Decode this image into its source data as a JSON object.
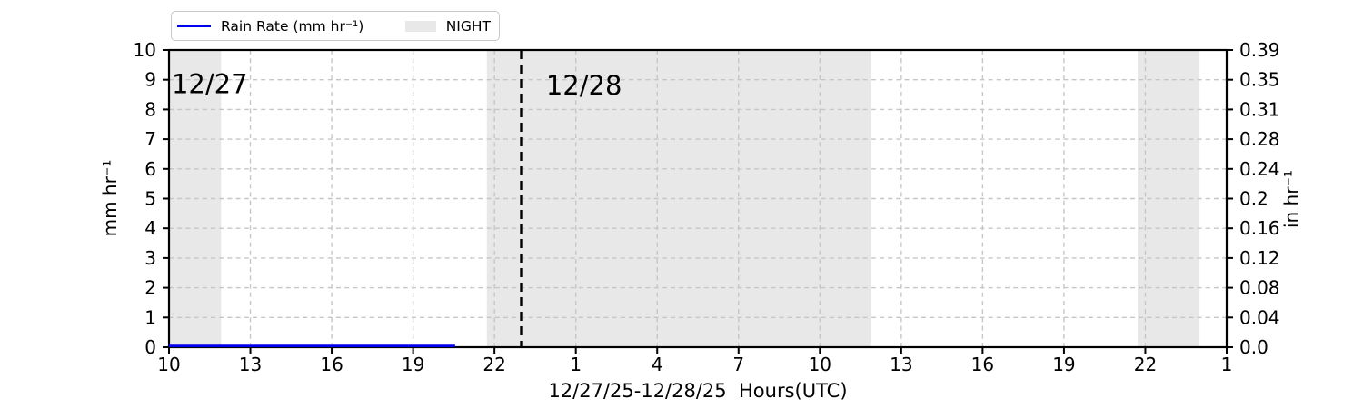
{
  "chart_data": {
    "type": "line",
    "xlabel": "12/27/25-12/28/25  Hours(UTC)",
    "ylabel_left": "mm hr⁻¹",
    "ylabel_right": "in hr⁻¹",
    "x_axis": {
      "unit": "Hours (UTC), continuous from 12/27/25 00:00",
      "range": [
        10,
        49
      ],
      "ticks": {
        "hours": [
          10,
          13,
          16,
          19,
          22,
          25,
          28,
          31,
          34,
          37,
          40,
          43,
          46,
          49
        ],
        "labels": [
          "10",
          "13",
          "16",
          "19",
          "22",
          "1",
          "4",
          "7",
          "10",
          "13",
          "16",
          "19",
          "22",
          "1"
        ]
      }
    },
    "y_axis_left": {
      "range": [
        0,
        10
      ],
      "ticks": {
        "values": [
          0,
          1,
          2,
          3,
          4,
          5,
          6,
          7,
          8,
          9,
          10
        ],
        "labels": [
          "0",
          "1",
          "2",
          "3",
          "4",
          "5",
          "6",
          "7",
          "8",
          "9",
          "10"
        ]
      }
    },
    "y_axis_right": {
      "ticks": {
        "values": [
          0,
          1,
          2,
          3,
          4,
          5,
          6,
          7,
          8,
          9,
          10
        ],
        "labels": [
          "0.0",
          "0.04",
          "0.08",
          "0.12",
          "0.16",
          "0.2",
          "0.24",
          "0.28",
          "0.31",
          "0.35",
          "0.39"
        ]
      }
    },
    "grid": {
      "style": "dashed",
      "horizontal_values": [
        1,
        2,
        3,
        4,
        5,
        6,
        7,
        8,
        9
      ],
      "vertical_hours": [
        13,
        16,
        19,
        22,
        25,
        28,
        31,
        34,
        37,
        40,
        43,
        46
      ]
    },
    "night_regions_hours": [
      [
        10,
        11.92
      ],
      [
        21.72,
        35.87
      ],
      [
        45.72,
        48.0
      ]
    ],
    "day_divider": {
      "hour": 23.0,
      "style": "dashed",
      "color": "#000000"
    },
    "annotations": [
      {
        "text": "12/27",
        "hour": 10.1,
        "value": 8.85
      },
      {
        "text": "12/28",
        "hour": 23.9,
        "value": 8.8
      }
    ],
    "series": [
      {
        "name": "Rain Rate (mm hr⁻¹)",
        "color": "#0000ee",
        "points": [
          [
            10,
            0
          ],
          [
            20.55,
            0
          ]
        ]
      }
    ],
    "legend": {
      "position": "upper-left",
      "items": [
        {
          "label": "Rain Rate (mm hr⁻¹)",
          "type": "line",
          "color": "#0000ee"
        },
        {
          "label": "NIGHT",
          "type": "patch",
          "color": "#e8e8e8"
        }
      ]
    },
    "colors": {
      "night": "#e8e8e8",
      "grid": "#c6c6c6",
      "axis": "#000000",
      "annotation": "#3c3c3c"
    }
  }
}
